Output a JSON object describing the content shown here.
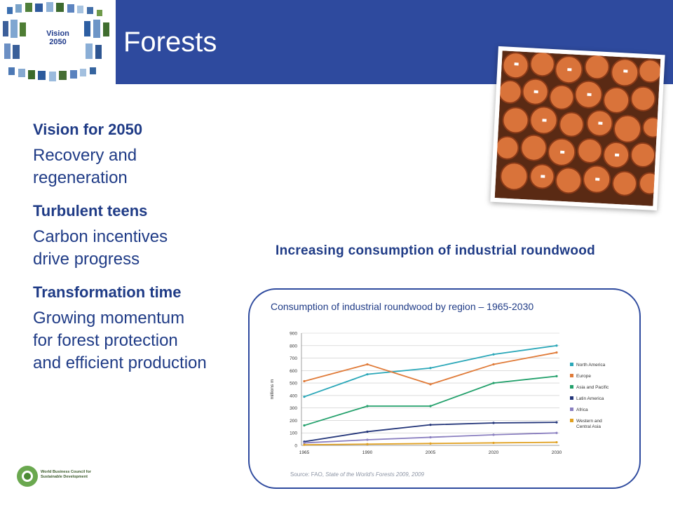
{
  "header": {
    "title": "Forests",
    "logo_line1": "Vision",
    "logo_line2": "2050"
  },
  "sections": [
    {
      "heading": "Vision for 2050",
      "body": "Recovery and regeneration"
    },
    {
      "heading": "Turbulent teens",
      "body": "Carbon incentives drive progress"
    },
    {
      "heading": "Transformation time",
      "body": "Growing momentum for forest protection and efficient production"
    }
  ],
  "chart_heading": "Increasing consumption of industrial roundwood",
  "chart_data": {
    "type": "line",
    "title": "Consumption of industrial roundwood by region – 1965-2030",
    "ylabel": "millions m",
    "xlabel": "",
    "x": [
      "1965",
      "1990",
      "2005",
      "2020",
      "2030"
    ],
    "ylim": [
      0,
      900
    ],
    "yticks": [
      0,
      100,
      200,
      300,
      400,
      500,
      600,
      700,
      800,
      900
    ],
    "grid": true,
    "legend_position": "right",
    "series": [
      {
        "name": "North America",
        "color": "#2aa7b8",
        "values": [
          390,
          570,
          620,
          730,
          800
        ]
      },
      {
        "name": "Europe",
        "color": "#e07b39",
        "values": [
          515,
          650,
          490,
          650,
          745
        ]
      },
      {
        "name": "Asia and Pacific",
        "color": "#22a06b",
        "values": [
          160,
          315,
          315,
          500,
          555
        ]
      },
      {
        "name": "Latin America",
        "color": "#24367a",
        "values": [
          30,
          110,
          165,
          180,
          185
        ]
      },
      {
        "name": "Africa",
        "color": "#8a7fc0",
        "values": [
          20,
          45,
          65,
          85,
          100
        ]
      },
      {
        "name": "Western and Central Asia",
        "color": "#e0a020",
        "values": [
          5,
          10,
          15,
          20,
          25
        ]
      }
    ],
    "source_prefix": "Source: FAO, ",
    "source_italic": "State of the World's Forests 2009, 2009"
  },
  "footer": {
    "org_line1": "World Business Council for",
    "org_line2": "Sustainable Development"
  }
}
